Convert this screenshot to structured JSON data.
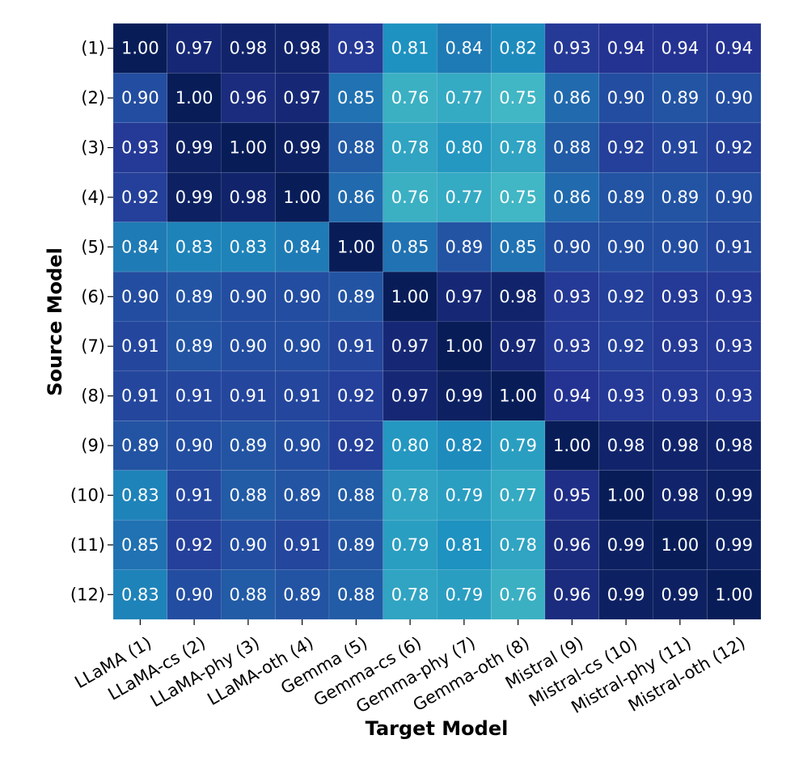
{
  "chart_data": {
    "type": "heatmap",
    "xlabel": "Target Model",
    "ylabel": "Source Model",
    "x_categories": [
      "LLaMA (1)",
      "LLaMA-cs (2)",
      "LLaMA-phy (3)",
      "LLaMA-oth (4)",
      "Gemma (5)",
      "Gemma-cs (6)",
      "Gemma-phy (7)",
      "Gemma-oth (8)",
      "Mistral (9)",
      "Mistral-cs (10)",
      "Mistral-phy (11)",
      "Mistral-oth (12)"
    ],
    "y_categories": [
      "(1)",
      "(2)",
      "(3)",
      "(4)",
      "(5)",
      "(6)",
      "(7)",
      "(8)",
      "(9)",
      "(10)",
      "(11)",
      "(12)"
    ],
    "values": [
      [
        1.0,
        0.97,
        0.98,
        0.98,
        0.93,
        0.81,
        0.84,
        0.82,
        0.93,
        0.94,
        0.94,
        0.94
      ],
      [
        0.9,
        1.0,
        0.96,
        0.97,
        0.85,
        0.76,
        0.77,
        0.75,
        0.86,
        0.9,
        0.89,
        0.9
      ],
      [
        0.93,
        0.99,
        1.0,
        0.99,
        0.88,
        0.78,
        0.8,
        0.78,
        0.88,
        0.92,
        0.91,
        0.92
      ],
      [
        0.92,
        0.99,
        0.98,
        1.0,
        0.86,
        0.76,
        0.77,
        0.75,
        0.86,
        0.89,
        0.89,
        0.9
      ],
      [
        0.84,
        0.83,
        0.83,
        0.84,
        1.0,
        0.85,
        0.89,
        0.85,
        0.9,
        0.9,
        0.9,
        0.91
      ],
      [
        0.9,
        0.89,
        0.9,
        0.9,
        0.89,
        1.0,
        0.97,
        0.98,
        0.93,
        0.92,
        0.93,
        0.93
      ],
      [
        0.91,
        0.89,
        0.9,
        0.9,
        0.91,
        0.97,
        1.0,
        0.97,
        0.93,
        0.92,
        0.93,
        0.93
      ],
      [
        0.91,
        0.91,
        0.91,
        0.91,
        0.92,
        0.97,
        0.99,
        1.0,
        0.94,
        0.93,
        0.93,
        0.93
      ],
      [
        0.89,
        0.9,
        0.89,
        0.9,
        0.92,
        0.8,
        0.82,
        0.79,
        1.0,
        0.98,
        0.98,
        0.98
      ],
      [
        0.83,
        0.91,
        0.88,
        0.89,
        0.88,
        0.78,
        0.79,
        0.77,
        0.95,
        1.0,
        0.98,
        0.99
      ],
      [
        0.85,
        0.92,
        0.9,
        0.91,
        0.89,
        0.79,
        0.81,
        0.78,
        0.96,
        0.99,
        1.0,
        0.99
      ],
      [
        0.83,
        0.9,
        0.88,
        0.89,
        0.88,
        0.78,
        0.79,
        0.76,
        0.96,
        0.99,
        0.99,
        1.0
      ]
    ],
    "value_range": [
      0.75,
      1.0
    ],
    "colormap": "YlGnBu",
    "grid": true,
    "legend": "none"
  },
  "colors": {
    "low": "#41b6c4",
    "mid_low": "#1d91c0",
    "mid": "#225ea8",
    "mid_high": "#253494",
    "high": "#081d58",
    "cell_text": "#ffffff",
    "axis_text": "#000000"
  }
}
